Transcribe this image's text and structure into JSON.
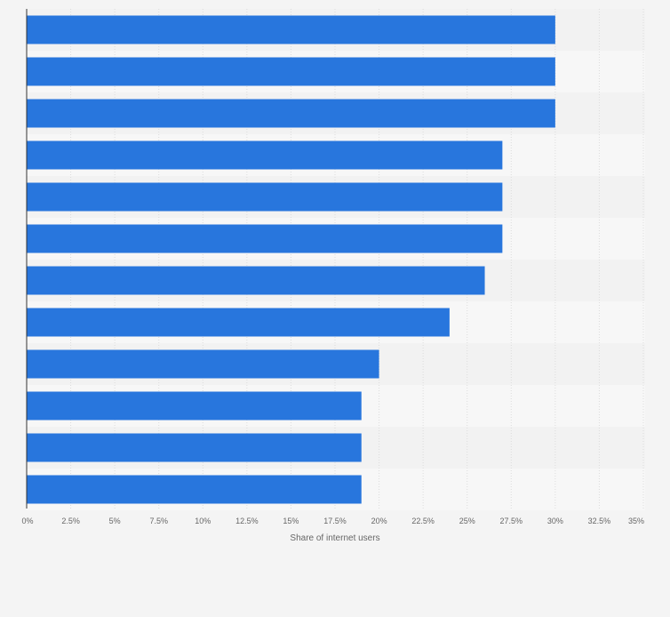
{
  "chart_data": {
    "type": "bar",
    "orientation": "horizontal",
    "title": "",
    "xlabel": "Share of internet users",
    "ylabel": "",
    "xlim": [
      0,
      35
    ],
    "grid": true,
    "x_ticks": [
      {
        "value": 0,
        "label": "0%"
      },
      {
        "value": 2.5,
        "label": "2.5%"
      },
      {
        "value": 5,
        "label": "5%"
      },
      {
        "value": 7.5,
        "label": "7.5%"
      },
      {
        "value": 10,
        "label": "10%"
      },
      {
        "value": 12.5,
        "label": "12.5%"
      },
      {
        "value": 15,
        "label": "15%"
      },
      {
        "value": 17.5,
        "label": "17.5%"
      },
      {
        "value": 20,
        "label": "20%"
      },
      {
        "value": 22.5,
        "label": "22.5%"
      },
      {
        "value": 25,
        "label": "25%"
      },
      {
        "value": 27.5,
        "label": "27.5%"
      },
      {
        "value": 30,
        "label": "30%"
      },
      {
        "value": 32.5,
        "label": "32.5%"
      },
      {
        "value": 35,
        "label": "35%"
      }
    ],
    "values": [
      30,
      30,
      30,
      27,
      27,
      27,
      26,
      24,
      20,
      19,
      19,
      19
    ],
    "bar_color": "#2876dd",
    "band_colors": [
      "#f2f2f2",
      "#f7f7f7"
    ]
  }
}
